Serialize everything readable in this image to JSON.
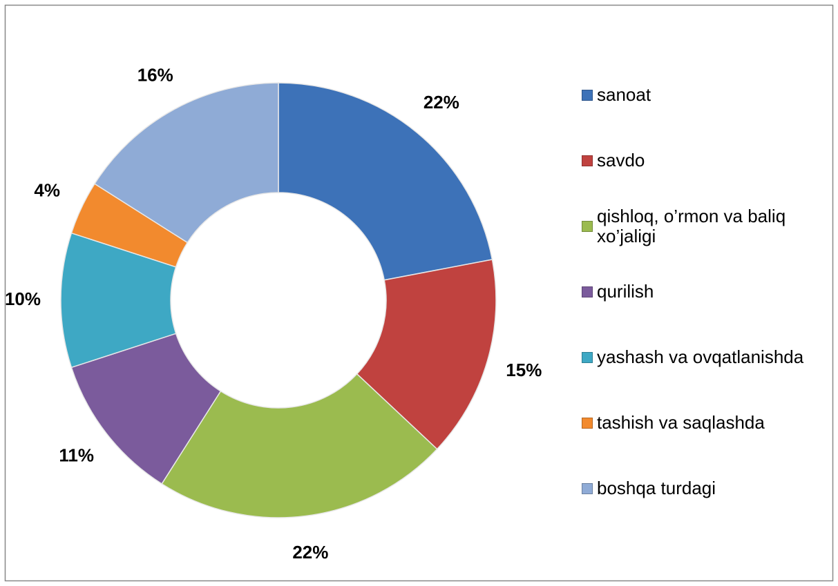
{
  "chart_data": {
    "type": "donut",
    "categories": [
      "sanoat",
      "savdo",
      "qishloq, o’rmon va baliq xo’jaligi",
      "qurilish",
      "yashash va ovqatlanishda",
      "tashish va saqlashda",
      "boshqa turdagi"
    ],
    "values": [
      22,
      15,
      22,
      11,
      10,
      4,
      16
    ],
    "value_labels": [
      "22%",
      "15%",
      "22%",
      "11%",
      "10%",
      "4%",
      "16%"
    ],
    "colors": [
      "#3d72b8",
      "#c0423f",
      "#9bbb4f",
      "#7b5b9c",
      "#3ea8c4",
      "#f28a2e",
      "#8fabd6"
    ],
    "legend": "right"
  }
}
